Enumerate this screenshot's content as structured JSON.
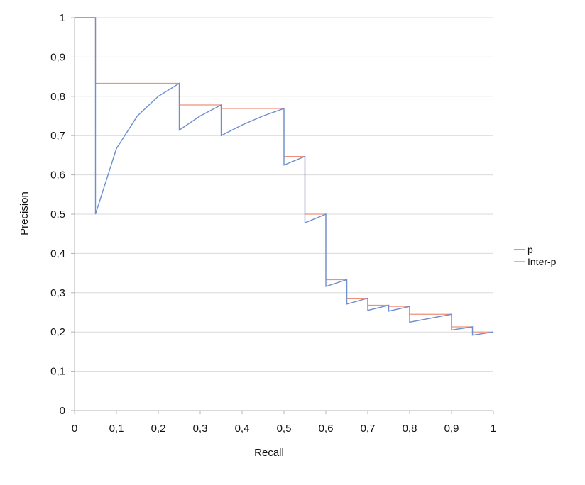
{
  "chart_data": {
    "type": "line",
    "title": "",
    "xlabel": "Recall",
    "ylabel": "Precision",
    "xlim": [
      0,
      1
    ],
    "ylim": [
      0,
      1
    ],
    "grid": true,
    "legend_position": "right",
    "x_tick_labels": [
      "0",
      "0,1",
      "0,2",
      "0,3",
      "0,4",
      "0,5",
      "0,6",
      "0,7",
      "0,8",
      "0,9",
      "1"
    ],
    "y_tick_labels": [
      "0",
      "0,1",
      "0,2",
      "0,3",
      "0,4",
      "0,5",
      "0,6",
      "0,7",
      "0,8",
      "0,9",
      "1"
    ],
    "series": [
      {
        "name": "p",
        "color": "#6d8fcf",
        "points": [
          [
            0,
            1
          ],
          [
            0.05,
            1
          ],
          [
            0.05,
            0.5
          ],
          [
            0.1,
            0.667
          ],
          [
            0.15,
            0.75
          ],
          [
            0.2,
            0.8
          ],
          [
            0.25,
            0.833
          ],
          [
            0.25,
            0.714
          ],
          [
            0.3,
            0.75
          ],
          [
            0.35,
            0.778
          ],
          [
            0.35,
            0.7
          ],
          [
            0.4,
            0.727
          ],
          [
            0.45,
            0.75
          ],
          [
            0.5,
            0.769
          ],
          [
            0.5,
            0.625
          ],
          [
            0.55,
            0.647
          ],
          [
            0.55,
            0.478
          ],
          [
            0.6,
            0.5
          ],
          [
            0.6,
            0.316
          ],
          [
            0.65,
            0.333
          ],
          [
            0.65,
            0.271
          ],
          [
            0.7,
            0.286
          ],
          [
            0.7,
            0.255
          ],
          [
            0.75,
            0.268
          ],
          [
            0.75,
            0.253
          ],
          [
            0.8,
            0.265
          ],
          [
            0.8,
            0.225
          ],
          [
            0.85,
            0.235
          ],
          [
            0.9,
            0.245
          ],
          [
            0.9,
            0.205
          ],
          [
            0.95,
            0.213
          ],
          [
            0.95,
            0.192
          ],
          [
            1,
            0.2
          ]
        ]
      },
      {
        "name": "Inter-p",
        "color": "#f0907a",
        "points": [
          [
            0,
            1
          ],
          [
            0.05,
            1
          ],
          [
            0.05,
            0.833
          ],
          [
            0.25,
            0.833
          ],
          [
            0.25,
            0.778
          ],
          [
            0.35,
            0.778
          ],
          [
            0.35,
            0.769
          ],
          [
            0.5,
            0.769
          ],
          [
            0.5,
            0.647
          ],
          [
            0.55,
            0.647
          ],
          [
            0.55,
            0.5
          ],
          [
            0.6,
            0.5
          ],
          [
            0.6,
            0.333
          ],
          [
            0.65,
            0.333
          ],
          [
            0.65,
            0.286
          ],
          [
            0.7,
            0.286
          ],
          [
            0.7,
            0.268
          ],
          [
            0.75,
            0.268
          ],
          [
            0.75,
            0.265
          ],
          [
            0.8,
            0.265
          ],
          [
            0.8,
            0.245
          ],
          [
            0.9,
            0.245
          ],
          [
            0.9,
            0.213
          ],
          [
            0.95,
            0.213
          ],
          [
            0.95,
            0.2
          ],
          [
            1,
            0.2
          ]
        ]
      }
    ]
  }
}
